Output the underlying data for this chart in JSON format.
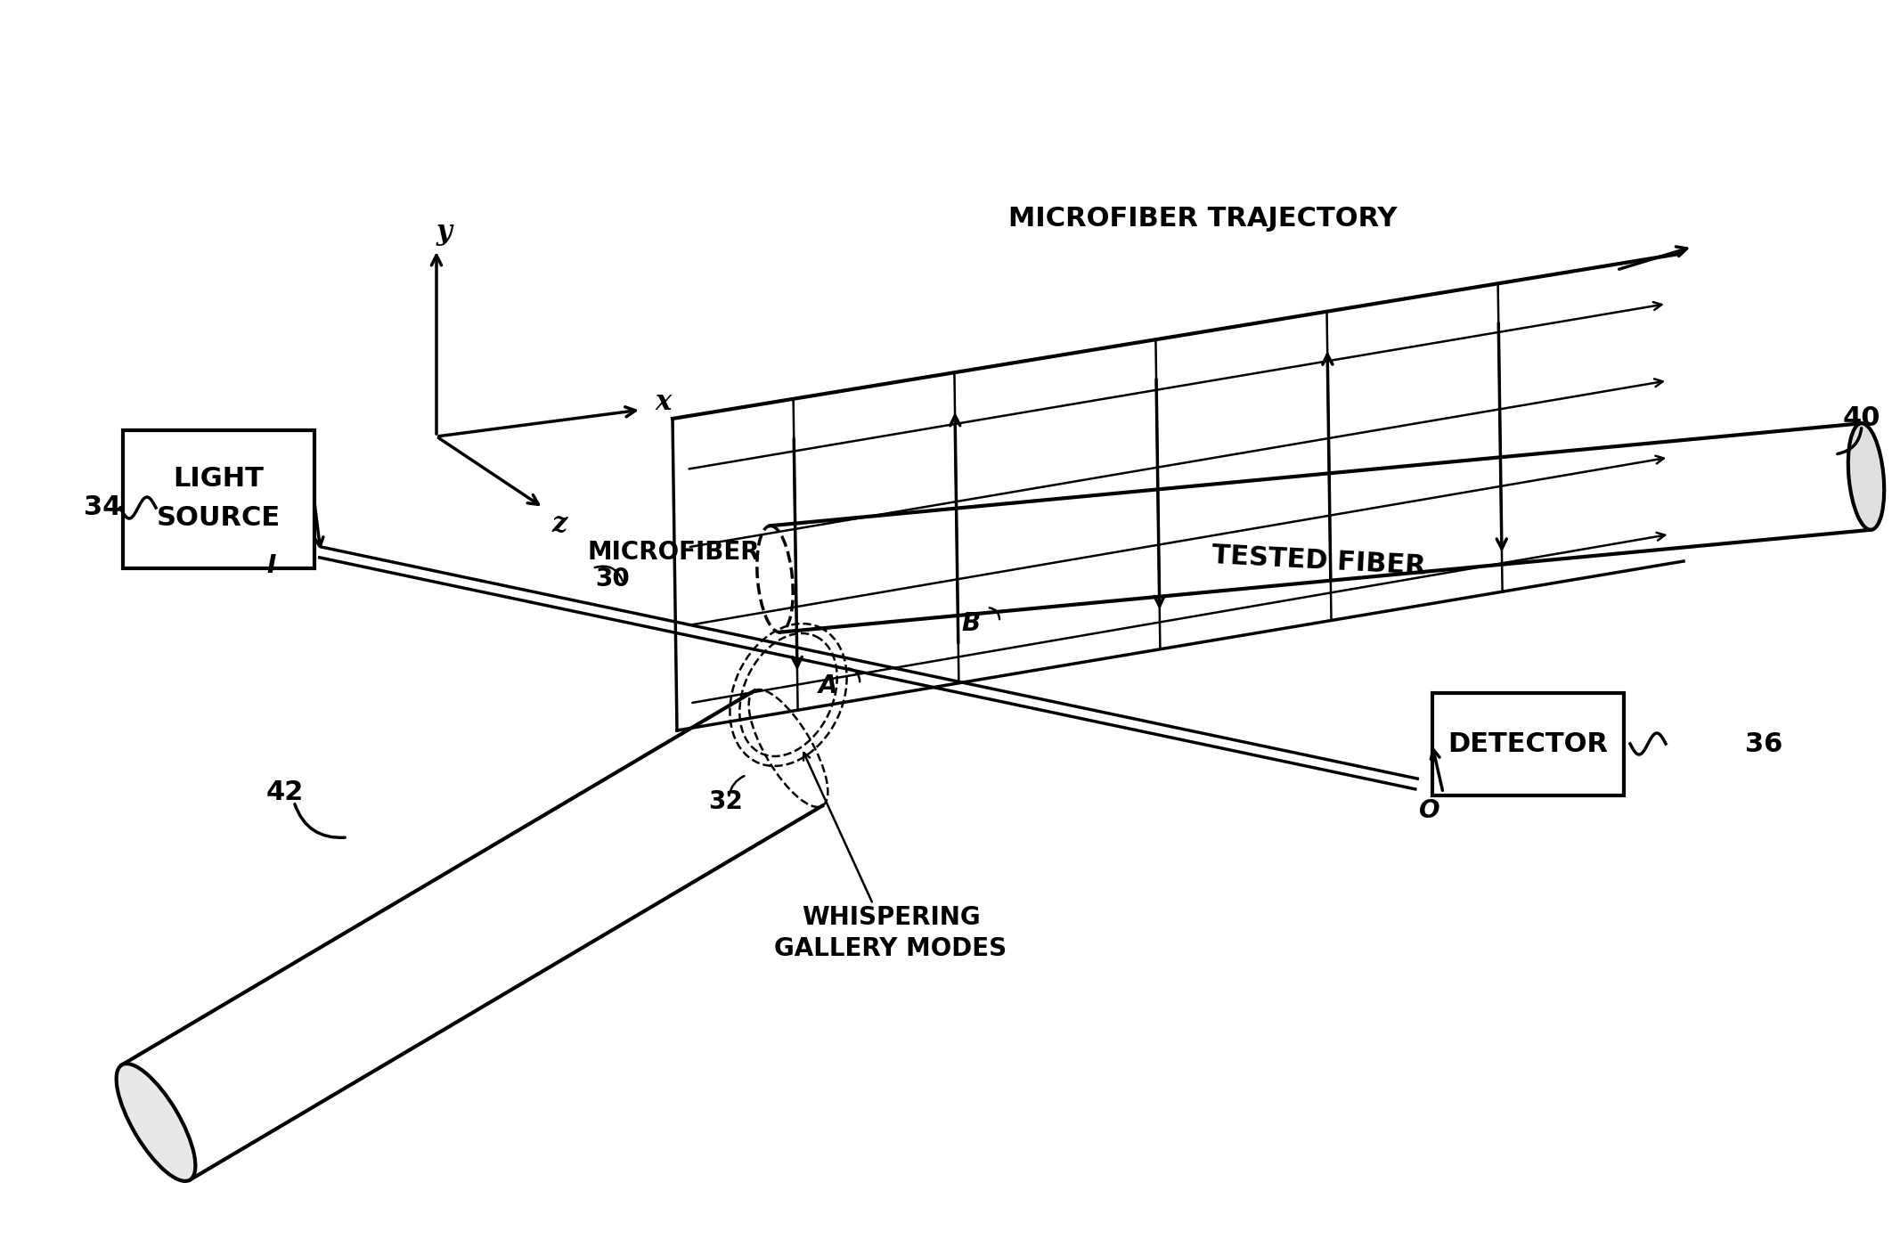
{
  "bg_color": "#ffffff",
  "line_color": "#000000",
  "fig_width": 21.24,
  "fig_height": 14.1,
  "labels": {
    "light_source_1": "LIGHT",
    "light_source_2": "SOURCE",
    "detector": "DETECTOR",
    "microfiber_1": "MICROFIBER",
    "microfiber_num": "30",
    "tested_fiber": "TESTED FIBER",
    "whispering_1": "WHISPERING",
    "whispering_2": "GALLERY MODES",
    "microfiber_traj": "MICROFIBER TRAJECTORY",
    "num_34": "34",
    "num_36": "36",
    "num_40": "40",
    "num_42": "42",
    "num_32": "32",
    "label_I": "I",
    "label_O": "O",
    "label_A": "A",
    "label_B": "B",
    "axis_x": "x",
    "axis_y": "y",
    "axis_z": "z"
  }
}
